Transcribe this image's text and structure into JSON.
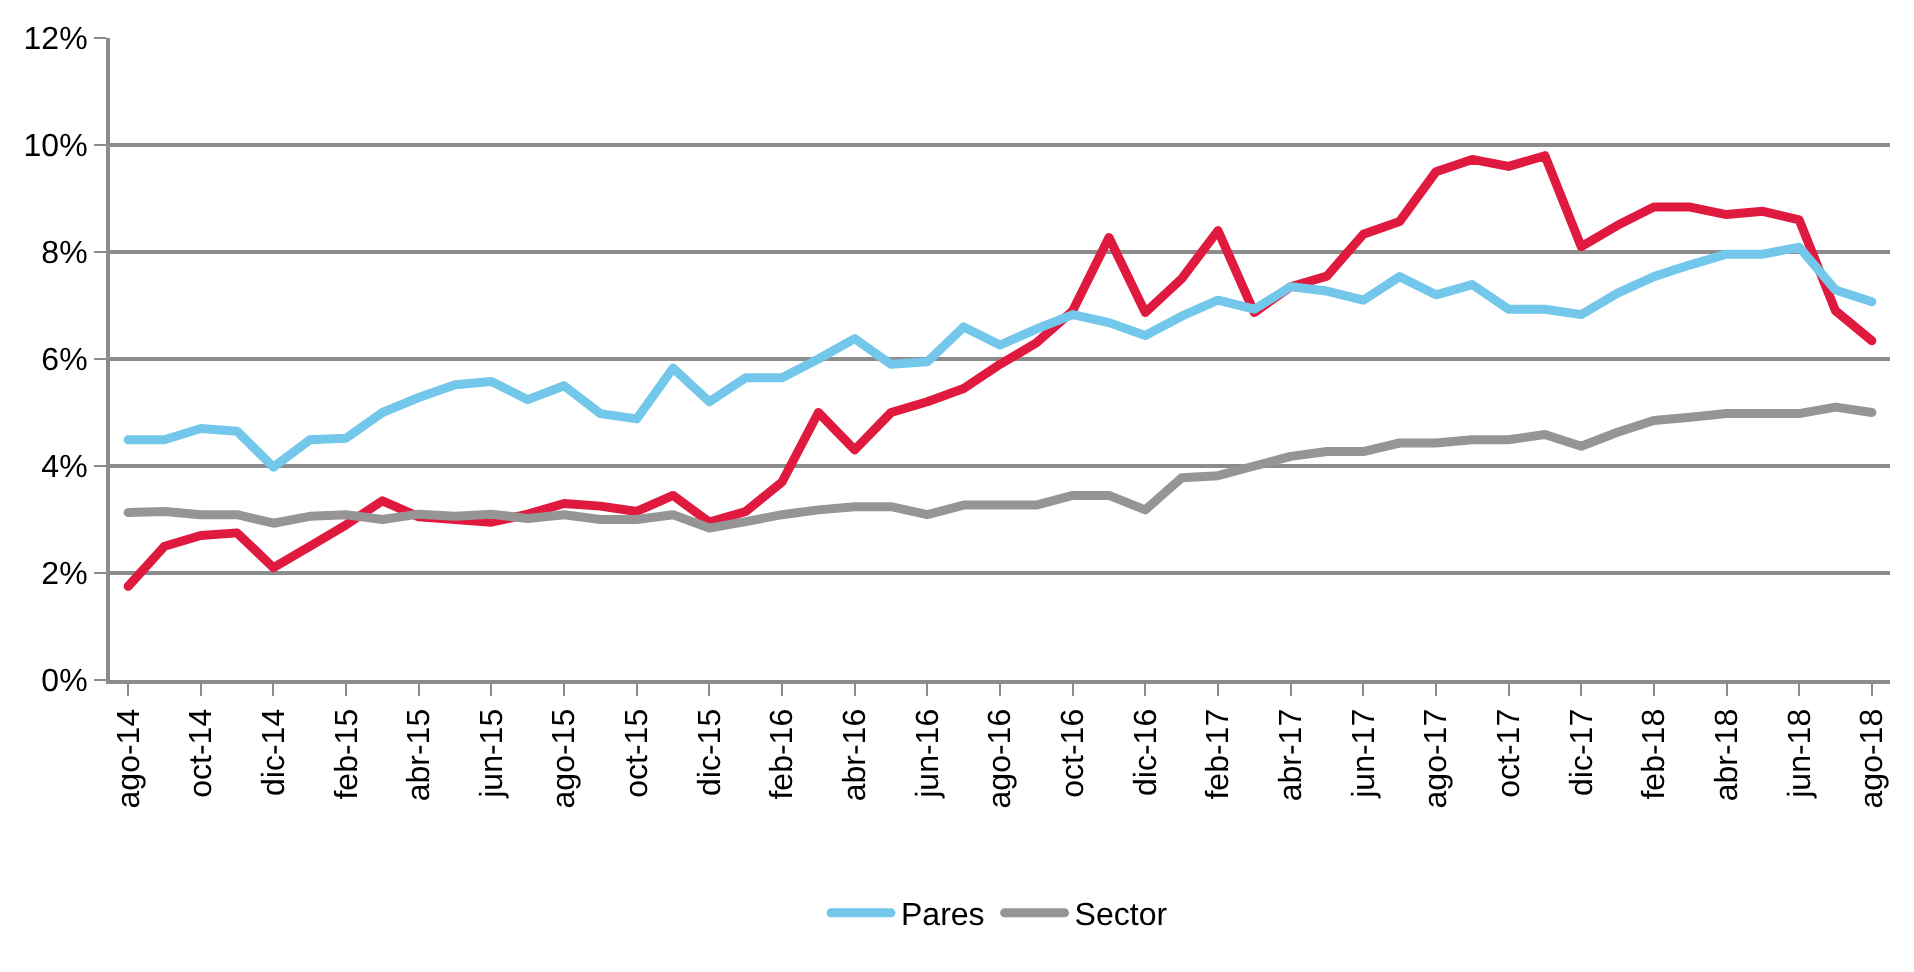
{
  "chart_data": {
    "type": "line",
    "categories": [
      "ago-14",
      null,
      "oct-14",
      null,
      "dic-14",
      null,
      "feb-15",
      null,
      "abr-15",
      null,
      "jun-15",
      null,
      "ago-15",
      null,
      "oct-15",
      null,
      "dic-15",
      null,
      "feb-16",
      null,
      "abr-16",
      null,
      "jun-16",
      null,
      "ago-16",
      null,
      "oct-16",
      null,
      "dic-16",
      null,
      "feb-17",
      null,
      "abr-17",
      null,
      "jun-17",
      null,
      "ago-17",
      null,
      "oct-17",
      null,
      "dic-17",
      null,
      "feb-18",
      null,
      "abr-18",
      null,
      "jun-18",
      null,
      "ago-18"
    ],
    "series": [
      {
        "color": "#e0193f",
        "values": [
          1.75,
          2.5,
          2.7,
          2.75,
          2.1,
          2.5,
          2.9,
          3.35,
          3.05,
          3.0,
          2.95,
          3.1,
          3.3,
          3.25,
          3.15,
          3.45,
          2.95,
          3.15,
          3.7,
          5.0,
          4.3,
          5.0,
          5.2,
          5.45,
          5.9,
          6.3,
          6.9,
          8.27,
          6.87,
          7.5,
          8.4,
          6.87,
          7.35,
          7.55,
          8.33,
          8.57,
          9.5,
          9.73,
          9.6,
          9.8,
          8.1,
          8.5,
          8.84,
          8.84,
          8.7,
          8.76,
          8.6,
          6.9,
          6.34
        ]
      },
      {
        "name": "Pares",
        "color": "#72c7ea",
        "values": [
          4.49,
          4.49,
          4.7,
          4.65,
          3.98,
          4.49,
          4.52,
          5.0,
          5.28,
          5.52,
          5.58,
          5.24,
          5.5,
          4.98,
          4.88,
          5.83,
          5.2,
          5.65,
          5.65,
          6.0,
          6.38,
          5.9,
          5.95,
          6.6,
          6.26,
          6.56,
          6.83,
          6.68,
          6.44,
          6.8,
          7.1,
          6.93,
          7.35,
          7.27,
          7.1,
          7.54,
          7.2,
          7.39,
          6.93,
          6.93,
          6.83,
          7.23,
          7.54,
          7.76,
          7.96,
          7.96,
          8.09,
          7.29,
          7.07
        ]
      },
      {
        "name": "Sector",
        "color": "#959595",
        "values": [
          3.13,
          3.15,
          3.09,
          3.09,
          2.93,
          3.06,
          3.09,
          3.0,
          3.1,
          3.06,
          3.1,
          3.02,
          3.09,
          3.0,
          3.0,
          3.09,
          2.84,
          2.96,
          3.09,
          3.18,
          3.24,
          3.24,
          3.09,
          3.27,
          3.27,
          3.27,
          3.45,
          3.45,
          3.18,
          3.78,
          3.82,
          4.0,
          4.18,
          4.27,
          4.27,
          4.43,
          4.43,
          4.49,
          4.49,
          4.59,
          4.37,
          4.63,
          4.85,
          4.91,
          4.98,
          4.98,
          4.98,
          5.1,
          5.0
        ]
      }
    ],
    "ylim": [
      0,
      12
    ],
    "yticks": [
      {
        "value": 0,
        "label": "0%"
      },
      {
        "value": 2,
        "label": "2%"
      },
      {
        "value": 4,
        "label": "4%"
      },
      {
        "value": 6,
        "label": "6%"
      },
      {
        "value": 8,
        "label": "8%"
      },
      {
        "value": 10,
        "label": "10%"
      },
      {
        "value": 12,
        "label": "12%"
      }
    ],
    "grid": "y",
    "legend": "bottom",
    "marker": "none",
    "line_style": "solid"
  }
}
